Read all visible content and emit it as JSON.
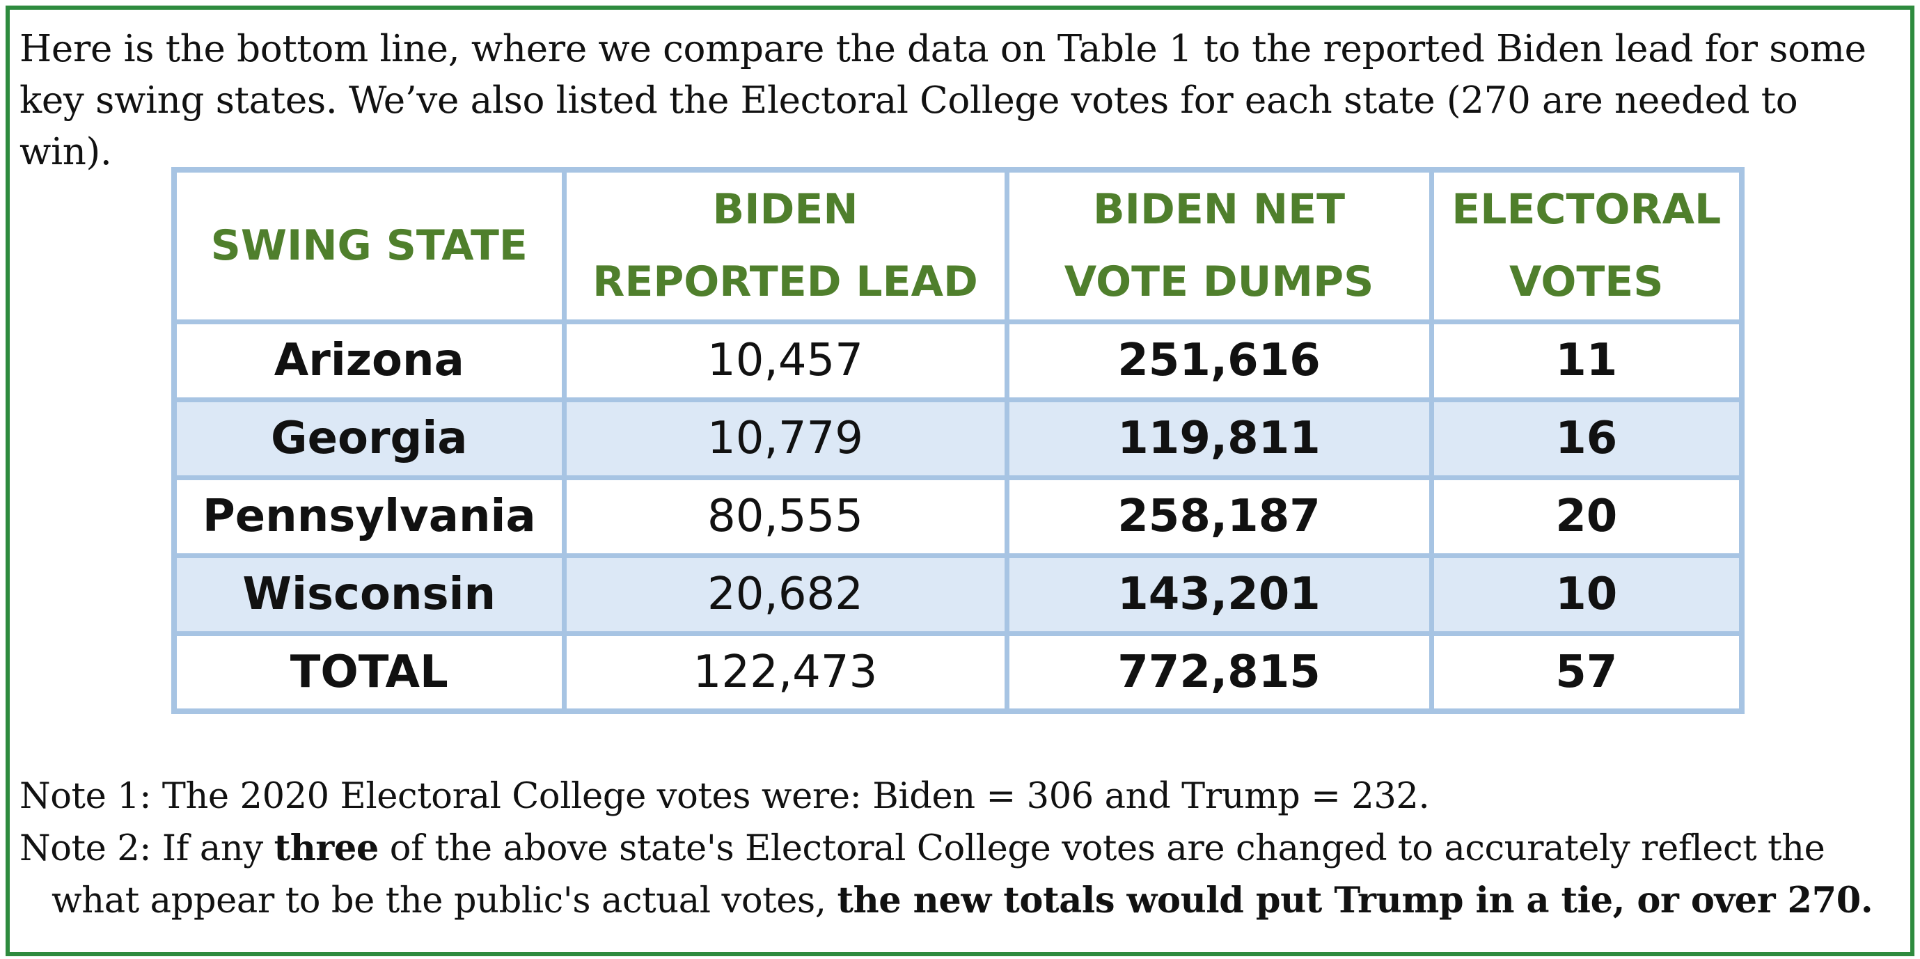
{
  "intro": {
    "line1": "Here is the bottom line, where we compare the data on Table 1 to the reported Biden lead for some",
    "line2": "key swing states. We’ve also listed the Electoral College votes for each state (270 are needed to win)."
  },
  "table": {
    "headers": {
      "col1": "SWING STATE",
      "col2_line1": "BIDEN",
      "col2_line2": "REPORTED LEAD",
      "col3_line1": "BIDEN NET",
      "col3_line2": "VOTE DUMPS",
      "col4_line1": "ELECTORAL",
      "col4_line2": "VOTES"
    },
    "rows": [
      {
        "state": "Arizona",
        "lead": "10,457",
        "dumps": "251,616",
        "ev": "11"
      },
      {
        "state": "Georgia",
        "lead": "10,779",
        "dumps": "119,811",
        "ev": "16"
      },
      {
        "state": "Pennsylvania",
        "lead": "80,555",
        "dumps": "258,187",
        "ev": "20"
      },
      {
        "state": "Wisconsin",
        "lead": "20,682",
        "dumps": "143,201",
        "ev": "10"
      }
    ],
    "total": {
      "state": "TOTAL",
      "lead": "122,473",
      "dumps": "772,815",
      "ev": "57"
    },
    "colors": {
      "border": "#a7c4e3",
      "header_text": "#4f7f2c",
      "stripe": "#dce8f6",
      "frame": "#2e8b3e"
    }
  },
  "notes": {
    "note1": "Note 1: The 2020 Electoral College votes were: Biden = 306 and Trump = 232.",
    "note2_a": "Note 2: If any ",
    "note2_b": "three",
    "note2_c": " of the above state's Electoral College votes are changed to accurately reflect the",
    "note2_d": "what appear to be the public's actual votes, ",
    "note2_e": "the new totals would put Trump in a tie, or over 270."
  }
}
